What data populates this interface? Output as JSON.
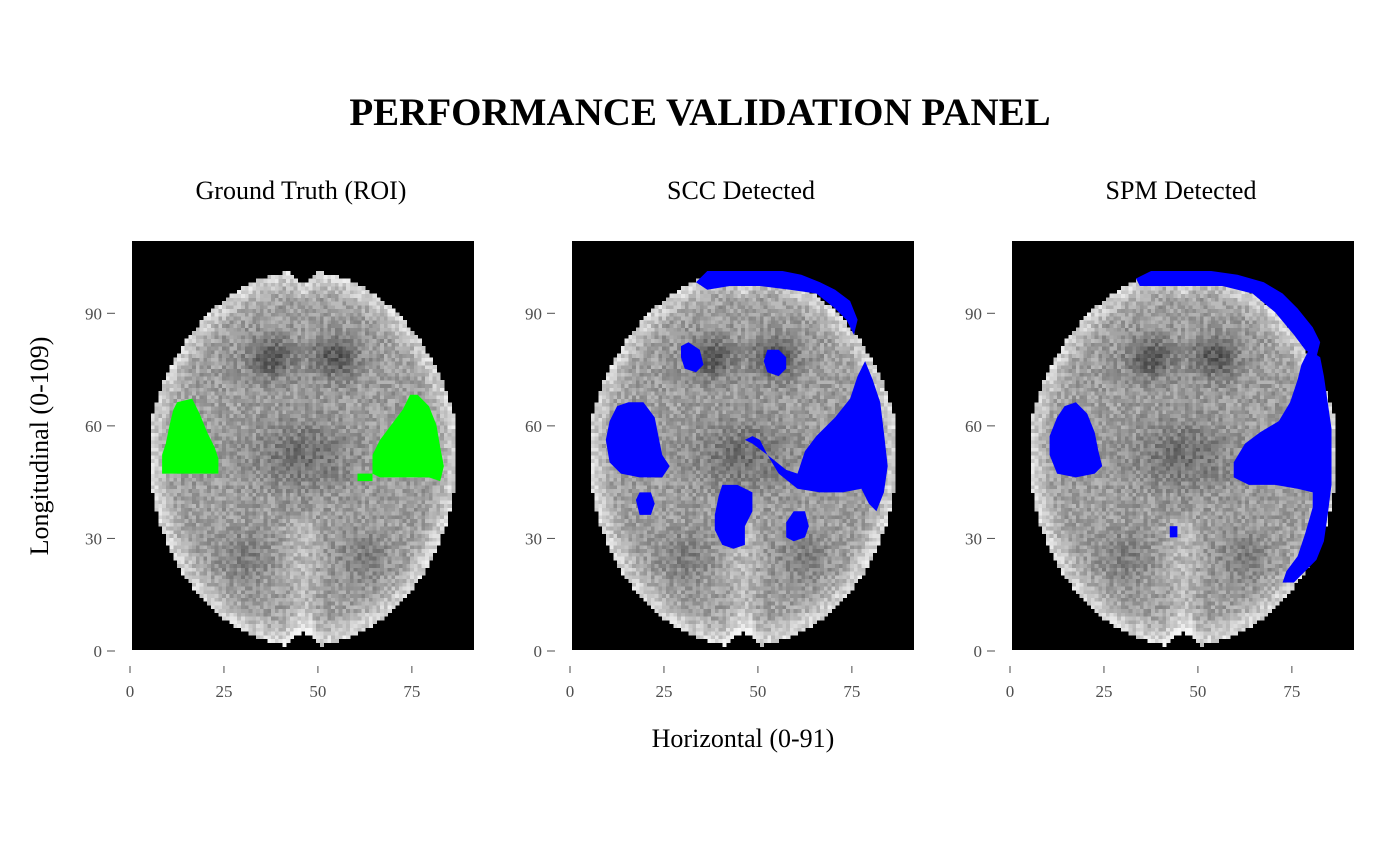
{
  "chart_data": {
    "type": "heatmap",
    "title": "PERFORMANCE VALIDATION PANEL",
    "xlabel": "Horizontal (0-91)",
    "ylabel": "Longitudinal (0-109)",
    "xlim": [
      0,
      91
    ],
    "ylim": [
      0,
      109
    ],
    "x_ticks": [
      "0",
      "25",
      "50",
      "75"
    ],
    "y_ticks": [
      "0",
      "30",
      "60",
      "90"
    ],
    "background": "axial brain slice, grayscale intensity",
    "panels": [
      {
        "title": "Ground Truth (ROI)",
        "overlay_color": "#00ff00",
        "regions": [
          {
            "side": "left",
            "points": [
              [
                8,
                47
              ],
              [
                8,
                52
              ],
              [
                9,
                55
              ],
              [
                10,
                60
              ],
              [
                11,
                64
              ],
              [
                12,
                66
              ],
              [
                16,
                67
              ],
              [
                18,
                63
              ],
              [
                20,
                58
              ],
              [
                22,
                54
              ],
              [
                23,
                51
              ],
              [
                23,
                47
              ]
            ]
          },
          {
            "side": "right",
            "points": [
              [
                64,
                47
              ],
              [
                64,
                52
              ],
              [
                66,
                56
              ],
              [
                69,
                60
              ],
              [
                72,
                64
              ],
              [
                74,
                68
              ],
              [
                76,
                68
              ],
              [
                79,
                65
              ],
              [
                81,
                60
              ],
              [
                82,
                54
              ],
              [
                83,
                49
              ],
              [
                82,
                45
              ],
              [
                79,
                46
              ],
              [
                72,
                46
              ],
              [
                66,
                46
              ]
            ]
          },
          {
            "side": "right-fragment",
            "points": [
              [
                60,
                45
              ],
              [
                64,
                45
              ],
              [
                64,
                47
              ],
              [
                60,
                47
              ]
            ]
          }
        ]
      },
      {
        "title": "SCC Detected",
        "overlay_color": "#0000ff",
        "regions": [
          {
            "side": "top-rim",
            "points": [
              [
                33,
                98
              ],
              [
                36,
                101
              ],
              [
                42,
                101
              ],
              [
                50,
                101
              ],
              [
                56,
                101
              ],
              [
                61,
                100
              ],
              [
                66,
                98
              ],
              [
                70,
                96
              ],
              [
                74,
                93
              ],
              [
                76,
                88
              ],
              [
                75,
                84
              ],
              [
                73,
                88
              ],
              [
                70,
                91
              ],
              [
                65,
                95
              ],
              [
                58,
                96
              ],
              [
                50,
                97
              ],
              [
                42,
                97
              ],
              [
                36,
                96
              ]
            ]
          },
          {
            "side": "right-large",
            "points": [
              [
                46,
                56
              ],
              [
                48,
                55
              ],
              [
                52,
                52
              ],
              [
                57,
                48
              ],
              [
                60,
                47
              ],
              [
                62,
                53
              ],
              [
                65,
                57
              ],
              [
                70,
                62
              ],
              [
                74,
                67
              ],
              [
                76,
                73
              ],
              [
                78,
                77
              ],
              [
                80,
                72
              ],
              [
                82,
                66
              ],
              [
                83,
                58
              ],
              [
                84,
                49
              ],
              [
                83,
                42
              ],
              [
                81,
                37
              ],
              [
                79,
                39
              ],
              [
                77,
                43
              ],
              [
                72,
                42
              ],
              [
                66,
                42
              ],
              [
                60,
                43
              ],
              [
                55,
                47
              ],
              [
                52,
                52
              ],
              [
                50,
                56
              ],
              [
                48,
                57
              ]
            ]
          },
          {
            "side": "left-large",
            "points": [
              [
                9,
                56
              ],
              [
                10,
                61
              ],
              [
                12,
                65
              ],
              [
                15,
                66
              ],
              [
                19,
                66
              ],
              [
                22,
                62
              ],
              [
                23,
                57
              ],
              [
                24,
                52
              ],
              [
                26,
                49
              ],
              [
                24,
                46
              ],
              [
                18,
                46
              ],
              [
                13,
                47
              ],
              [
                10,
                50
              ]
            ]
          },
          {
            "side": "left-upper-blob",
            "points": [
              [
                29,
                78
              ],
              [
                29,
                81
              ],
              [
                31,
                82
              ],
              [
                34,
                80
              ],
              [
                35,
                76
              ],
              [
                33,
                74
              ],
              [
                30,
                75
              ]
            ]
          },
          {
            "side": "center-upper-blob",
            "points": [
              [
                51,
                77
              ],
              [
                52,
                80
              ],
              [
                55,
                80
              ],
              [
                57,
                78
              ],
              [
                57,
                75
              ],
              [
                55,
                73
              ],
              [
                52,
                74
              ]
            ]
          },
          {
            "side": "left-lower-blob",
            "points": [
              [
                17,
                40
              ],
              [
                18,
                42
              ],
              [
                21,
                42
              ],
              [
                22,
                39
              ],
              [
                21,
                36
              ],
              [
                18,
                36
              ]
            ]
          },
          {
            "side": "center-lower-blob",
            "points": [
              [
                38,
                32
              ],
              [
                38,
                36
              ],
              [
                39,
                41
              ],
              [
                40,
                44
              ],
              [
                44,
                44
              ],
              [
                48,
                42
              ],
              [
                48,
                37
              ],
              [
                46,
                33
              ],
              [
                46,
                28
              ],
              [
                43,
                27
              ],
              [
                40,
                28
              ]
            ]
          },
          {
            "side": "right-lower-blob",
            "points": [
              [
                57,
                30
              ],
              [
                57,
                34
              ],
              [
                59,
                37
              ],
              [
                62,
                37
              ],
              [
                63,
                33
              ],
              [
                62,
                30
              ],
              [
                59,
                29
              ]
            ]
          }
        ]
      },
      {
        "title": "SPM Detected",
        "overlay_color": "#0000ff",
        "regions": [
          {
            "side": "top-rim",
            "points": [
              [
                33,
                99
              ],
              [
                37,
                101
              ],
              [
                45,
                101
              ],
              [
                53,
                101
              ],
              [
                60,
                100
              ],
              [
                67,
                98
              ],
              [
                72,
                95
              ],
              [
                76,
                91
              ],
              [
                80,
                86
              ],
              [
                82,
                82
              ],
              [
                81,
                78
              ],
              [
                78,
                80
              ],
              [
                75,
                84
              ],
              [
                70,
                90
              ],
              [
                64,
                95
              ],
              [
                56,
                97
              ],
              [
                46,
                97
              ],
              [
                38,
                97
              ],
              [
                34,
                97
              ]
            ]
          },
          {
            "side": "right-margin",
            "points": [
              [
                79,
                80
              ],
              [
                82,
                78
              ],
              [
                83,
                73
              ],
              [
                84,
                66
              ],
              [
                85,
                59
              ],
              [
                85,
                51
              ],
              [
                85,
                44
              ],
              [
                84,
                36
              ],
              [
                83,
                29
              ],
              [
                81,
                24
              ],
              [
                78,
                21
              ],
              [
                75,
                18
              ],
              [
                72,
                18
              ],
              [
                73,
                21
              ],
              [
                76,
                25
              ],
              [
                78,
                31
              ],
              [
                80,
                38
              ],
              [
                80,
                42
              ],
              [
                76,
                43
              ],
              [
                70,
                44
              ],
              [
                63,
                44
              ],
              [
                59,
                46
              ],
              [
                59,
                50
              ],
              [
                62,
                55
              ],
              [
                66,
                58
              ],
              [
                71,
                61
              ],
              [
                74,
                66
              ],
              [
                76,
                72
              ],
              [
                77,
                76
              ],
              [
                78,
                78
              ]
            ]
          },
          {
            "side": "left-large",
            "points": [
              [
                10,
                52
              ],
              [
                10,
                57
              ],
              [
                12,
                62
              ],
              [
                14,
                65
              ],
              [
                17,
                66
              ],
              [
                20,
                63
              ],
              [
                22,
                58
              ],
              [
                23,
                53
              ],
              [
                24,
                49
              ],
              [
                22,
                47
              ],
              [
                17,
                46
              ],
              [
                12,
                47
              ]
            ]
          },
          {
            "side": "center-small",
            "points": [
              [
                42,
                30
              ],
              [
                44,
                30
              ],
              [
                44,
                33
              ],
              [
                42,
                33
              ]
            ]
          }
        ]
      }
    ]
  }
}
